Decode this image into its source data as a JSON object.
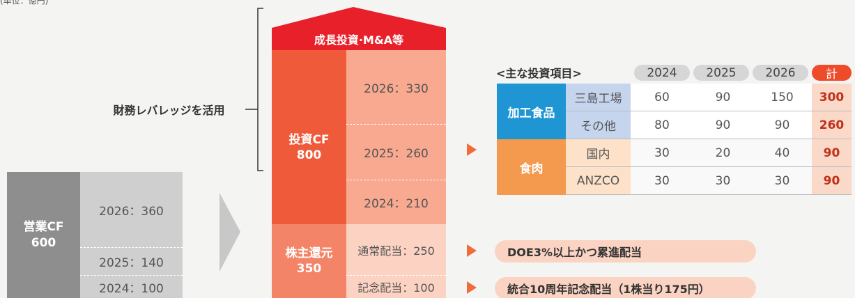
{
  "unit": "(単位：億円)",
  "operating_cf": {
    "label": "営業CF",
    "total": "600",
    "years": [
      "2026：360",
      "2025：140",
      "2024：100"
    ]
  },
  "leverage": "財務レバレッジを活用",
  "growth": "成長投資·M&A等",
  "investment_cf": {
    "label": "投資CF",
    "total": "800",
    "years": [
      "2026：330",
      "2025：260",
      "2024：210"
    ]
  },
  "shareholder_return": {
    "label": "株主還元",
    "total": "350",
    "items": [
      "通常配当：250",
      "記念配当：100"
    ]
  },
  "policies": [
    "DOE3%以上かつ累進配当",
    "統合10周年記念配当（1株当り175円）"
  ],
  "table": {
    "title": "<主な投資項目>",
    "header": [
      "2024",
      "2025",
      "2026",
      "計"
    ],
    "groups": [
      {
        "name": "加工食品",
        "rows": [
          [
            "三島工場",
            60,
            90,
            150,
            300
          ],
          [
            "その他",
            80,
            90,
            90,
            260
          ]
        ]
      },
      {
        "name": "食肉",
        "rows": [
          [
            "国内",
            30,
            20,
            40,
            90
          ],
          [
            "ANZCO",
            30,
            30,
            30,
            90
          ]
        ]
      }
    ]
  }
}
